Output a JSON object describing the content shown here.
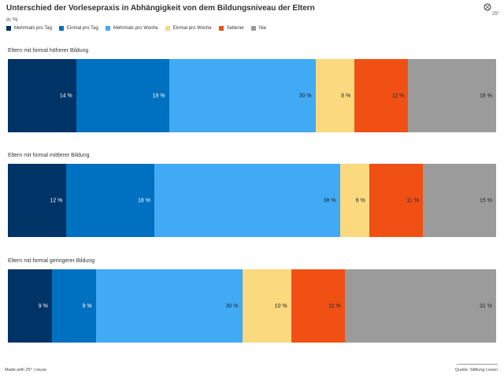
{
  "chart_data": {
    "type": "bar",
    "orientation": "horizontal",
    "stacked": true,
    "title": "Unterschied der Vorlesepraxis in Abhängigkeit von dem Bildungsniveau der Eltern",
    "subtitle": "in %",
    "categories": [
      "Eltern mit formal höherer Bildung",
      "Eltern mit formal mittlerer Bildung",
      "Eltern mit formal geringerer Bildung"
    ],
    "series": [
      {
        "name": "Mehrmals pro Tag",
        "color": "#003366",
        "label_color": "#ffffff",
        "values": [
          14,
          12,
          9
        ]
      },
      {
        "name": "Einmal pro Tag",
        "color": "#0070c0",
        "label_color": "#ffffff",
        "values": [
          19,
          18,
          9
        ]
      },
      {
        "name": "Mehrmals pro Woche",
        "color": "#41aaf5",
        "label_color": "#222222",
        "values": [
          30,
          38,
          30
        ]
      },
      {
        "name": "Einmal pro Woche",
        "color": "#fbd97e",
        "label_color": "#222222",
        "values": [
          8,
          6,
          10
        ]
      },
      {
        "name": "Seltener",
        "color": "#f05014",
        "label_color": "#222222",
        "values": [
          11,
          11,
          11
        ]
      },
      {
        "name": "Nie",
        "color": "#9b9b9b",
        "label_color": "#222222",
        "values": [
          18,
          15,
          31
        ]
      }
    ],
    "value_suffix": " %",
    "legend_position": "top-left"
  },
  "footer": {
    "credit": "Made with 25° | reuse",
    "source": "Quelle: Stiftung Lesen"
  },
  "logo_text": "25°"
}
